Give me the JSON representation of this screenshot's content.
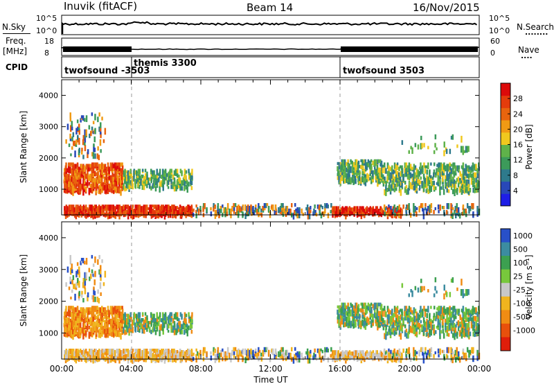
{
  "header": {
    "station": "Inuvik (fitACF)",
    "beam": "Beam 14",
    "date": "16/Nov/2015"
  },
  "labels": {
    "nsky": "N.Sky",
    "nsearch": "N.Search",
    "freq": "Freq.",
    "mhz": "[MHz]",
    "nave": "Nave",
    "cpid": "CPID",
    "nsky_ticks": [
      "10^5",
      "10^0"
    ],
    "freq_ticks": [
      "18",
      "8"
    ],
    "nave_ticks": [
      "60",
      "0"
    ],
    "nsearch_dots": "........",
    "nave_dots": "...."
  },
  "cpid_segments": [
    {
      "label": "twofsound -3503",
      "start_h": 0
    },
    {
      "label": "themis 3300",
      "start_h": 4
    },
    {
      "label": "twofsound 3503",
      "start_h": 16
    }
  ],
  "xaxis": {
    "label": "Time UT",
    "ticks": [
      "00:00",
      "04:00",
      "08:00",
      "12:00",
      "16:00",
      "20:00",
      "00:00"
    ]
  },
  "chart_data": [
    {
      "type": "heatmap",
      "ylabel": "Slant Range [km]",
      "yticks": [
        1000,
        2000,
        3000,
        4000
      ],
      "ylim": [
        180,
        4500
      ],
      "xlim_hours": [
        0,
        24
      ],
      "colorbar": {
        "label": "Power [dB]",
        "ticks": [
          "4",
          "8",
          "12",
          "16",
          "20",
          "24",
          "28"
        ],
        "colors": [
          "#1e1ee6",
          "#2848b8",
          "#2e7a8c",
          "#3c9a5a",
          "#5fb24a",
          "#f0c81e",
          "#f09a14",
          "#e8640e",
          "#e43c0c",
          "#dc0a0a"
        ]
      }
    },
    {
      "type": "heatmap",
      "ylabel": "Slant Range [km]",
      "yticks": [
        1000,
        2000,
        3000,
        4000
      ],
      "ylim": [
        180,
        4500
      ],
      "xlim_hours": [
        0,
        24
      ],
      "colorbar": {
        "label": "Velocity [m s⁻¹]",
        "ticks": [
          "1000",
          "500",
          "100",
          "25",
          "-25",
          "-100",
          "-500",
          "-1000"
        ],
        "colors": [
          "#2850c8",
          "#3c8ca0",
          "#3ca050",
          "#78c83c",
          "#c8c8c8",
          "#f0b41e",
          "#f08c14",
          "#e8500c",
          "#e01e0a"
        ]
      }
    }
  ]
}
